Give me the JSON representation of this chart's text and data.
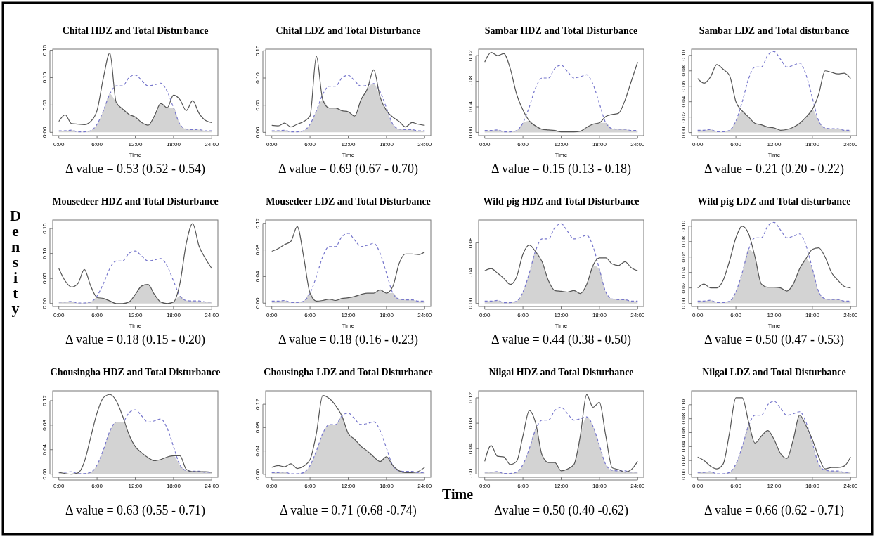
{
  "chart_data": [
    {
      "type": "line",
      "title": "Chital HDZ and Total Disturbance",
      "xlabel": "Time",
      "annotations": [
        "Δ value = 0.53 (0.52 - 0.54)"
      ],
      "x": [
        0,
        1,
        2,
        3,
        4,
        5,
        6,
        7,
        8,
        9,
        10,
        11,
        12,
        13,
        14,
        15,
        16,
        17,
        18,
        19,
        20,
        21,
        22,
        23,
        24
      ],
      "xlim": [
        -0.96,
        24.96
      ],
      "xticks": [
        {
          "value": 0,
          "label": "0:00"
        },
        {
          "value": 6,
          "label": "6:00"
        },
        {
          "value": 12,
          "label": "12:00"
        },
        {
          "value": 18,
          "label": "18:00"
        },
        {
          "value": 24,
          "label": "24:00"
        }
      ],
      "ylim": [
        -0.006,
        0.152
      ],
      "yticks": [
        {
          "value": 0,
          "label": "0.00"
        },
        {
          "value": 0.05,
          "label": "0.05"
        },
        {
          "value": 0.1,
          "label": "0.10"
        },
        {
          "value": 0.15,
          "label": "0.15"
        }
      ],
      "grid": false,
      "legend": false,
      "series": [
        {
          "type": "area",
          "color": "#d3d3d3",
          "values": [
            0.003,
            0.003,
            0.004,
            0.001,
            0.001,
            0.003,
            0.015,
            0.04,
            0.07,
            0.055,
            0.043,
            0.033,
            0.028,
            0.018,
            0.013,
            0.03,
            0.053,
            0.045,
            0.045,
            0.015,
            0.006,
            0.005,
            0.005,
            0.003,
            0.003
          ]
        },
        {
          "type": "line",
          "line_style": "dashed",
          "color": "#7777cc",
          "values": [
            0.003,
            0.003,
            0.004,
            0.001,
            0.001,
            0.003,
            0.015,
            0.04,
            0.07,
            0.085,
            0.085,
            0.1,
            0.105,
            0.095,
            0.085,
            0.087,
            0.09,
            0.075,
            0.045,
            0.015,
            0.006,
            0.005,
            0.005,
            0.003,
            0.003
          ]
        },
        {
          "type": "line",
          "line_style": "solid",
          "color": "#555555",
          "values": [
            0.02,
            0.032,
            0.016,
            0.015,
            0.014,
            0.02,
            0.04,
            0.1,
            0.145,
            0.055,
            0.043,
            0.033,
            0.028,
            0.018,
            0.013,
            0.03,
            0.053,
            0.045,
            0.068,
            0.06,
            0.04,
            0.058,
            0.035,
            0.022,
            0.018
          ]
        }
      ]
    },
    {
      "type": "line",
      "title": "Chital LDZ and Total Disturbance",
      "xlabel": "Time",
      "annotations": [
        "Δ value = 0.69 (0.67 - 0.70)"
      ],
      "x": [
        0,
        1,
        2,
        3,
        4,
        5,
        6,
        7,
        8,
        9,
        10,
        11,
        12,
        13,
        14,
        15,
        16,
        17,
        18,
        19,
        20,
        21,
        22,
        23,
        24
      ],
      "xlim": [
        -0.96,
        24.96
      ],
      "xticks": [
        {
          "value": 0,
          "label": "0:00"
        },
        {
          "value": 6,
          "label": "6:00"
        },
        {
          "value": 12,
          "label": "12:00"
        },
        {
          "value": 18,
          "label": "18:00"
        },
        {
          "value": 24,
          "label": "24:00"
        }
      ],
      "ylim": [
        -0.006,
        0.153
      ],
      "yticks": [
        {
          "value": 0,
          "label": "0.00"
        },
        {
          "value": 0.05,
          "label": "0.05"
        },
        {
          "value": 0.1,
          "label": "0.10"
        },
        {
          "value": 0.15,
          "label": "0.15"
        }
      ],
      "grid": false,
      "legend": false,
      "series": [
        {
          "type": "area",
          "color": "#d3d3d3",
          "values": [
            0.003,
            0.003,
            0.004,
            0.001,
            0.001,
            0.003,
            0.015,
            0.04,
            0.06,
            0.045,
            0.045,
            0.04,
            0.038,
            0.03,
            0.06,
            0.08,
            0.09,
            0.065,
            0.04,
            0.015,
            0.006,
            0.005,
            0.005,
            0.003,
            0.003
          ]
        },
        {
          "type": "line",
          "line_style": "dashed",
          "color": "#7777cc",
          "values": [
            0.003,
            0.003,
            0.004,
            0.001,
            0.001,
            0.003,
            0.015,
            0.04,
            0.07,
            0.085,
            0.085,
            0.1,
            0.105,
            0.095,
            0.085,
            0.087,
            0.09,
            0.075,
            0.045,
            0.015,
            0.006,
            0.005,
            0.005,
            0.003,
            0.003
          ]
        },
        {
          "type": "line",
          "line_style": "solid",
          "color": "#555555",
          "values": [
            0.013,
            0.012,
            0.017,
            0.01,
            0.015,
            0.02,
            0.03,
            0.14,
            0.06,
            0.045,
            0.045,
            0.04,
            0.038,
            0.03,
            0.06,
            0.08,
            0.115,
            0.065,
            0.04,
            0.028,
            0.02,
            0.01,
            0.018,
            0.015,
            0.013
          ]
        }
      ]
    },
    {
      "type": "line",
      "title": "Sambar HDZ and Total Disturbance",
      "xlabel": "Time",
      "annotations": [
        "Δ value =  0.15 (0.13 - 0.18)"
      ],
      "x": [
        0,
        1,
        2,
        3,
        4,
        5,
        6,
        7,
        8,
        9,
        10,
        11,
        12,
        13,
        14,
        15,
        16,
        17,
        18,
        19,
        20,
        21,
        22,
        23,
        24
      ],
      "xlim": [
        -0.96,
        24.96
      ],
      "xticks": [
        {
          "value": 0,
          "label": "0:00"
        },
        {
          "value": 6,
          "label": "6:00"
        },
        {
          "value": 12,
          "label": "12:00"
        },
        {
          "value": 18,
          "label": "18:00"
        },
        {
          "value": 24,
          "label": "24:00"
        }
      ],
      "ylim": [
        -0.005,
        0.13
      ],
      "yticks": [
        {
          "value": 0,
          "label": "0.00"
        },
        {
          "value": 0.04,
          "label": "0.04"
        },
        {
          "value": 0.08,
          "label": "0.08"
        },
        {
          "value": 0.12,
          "label": "0.12"
        }
      ],
      "grid": false,
      "legend": false,
      "series": [
        {
          "type": "area",
          "color": "#d3d3d3",
          "values": [
            0.003,
            0.003,
            0.004,
            0.001,
            0.001,
            0.003,
            0.015,
            0.018,
            0.01,
            0.005,
            0.004,
            0.003,
            0.001,
            0.001,
            0.001,
            0.002,
            0.008,
            0.013,
            0.015,
            0.015,
            0.006,
            0.005,
            0.005,
            0.003,
            0.003
          ]
        },
        {
          "type": "line",
          "line_style": "dashed",
          "color": "#7777cc",
          "values": [
            0.003,
            0.003,
            0.004,
            0.001,
            0.001,
            0.003,
            0.015,
            0.04,
            0.07,
            0.085,
            0.085,
            0.1,
            0.105,
            0.095,
            0.085,
            0.087,
            0.09,
            0.075,
            0.045,
            0.015,
            0.006,
            0.005,
            0.005,
            0.003,
            0.003
          ]
        },
        {
          "type": "line",
          "line_style": "solid",
          "color": "#555555",
          "values": [
            0.11,
            0.125,
            0.12,
            0.123,
            0.1,
            0.06,
            0.035,
            0.018,
            0.01,
            0.005,
            0.004,
            0.003,
            0.001,
            0.001,
            0.001,
            0.002,
            0.008,
            0.013,
            0.015,
            0.025,
            0.028,
            0.03,
            0.05,
            0.08,
            0.11
          ]
        }
      ]
    },
    {
      "type": "line",
      "title": "Sambar LDZ and Total disturbance",
      "xlabel": "Time",
      "annotations": [
        "Δ value = 0.21 (0.20 - 0.22)"
      ],
      "x": [
        0,
        1,
        2,
        3,
        4,
        5,
        6,
        7,
        8,
        9,
        10,
        11,
        12,
        13,
        14,
        15,
        16,
        17,
        18,
        19,
        20,
        21,
        22,
        23,
        24
      ],
      "xlim": [
        -0.96,
        24.96
      ],
      "xticks": [
        {
          "value": 0,
          "label": "0:00"
        },
        {
          "value": 6,
          "label": "6:00"
        },
        {
          "value": 12,
          "label": "12:00"
        },
        {
          "value": 18,
          "label": "18:00"
        },
        {
          "value": 24,
          "label": "24:00"
        }
      ],
      "ylim": [
        -0.004,
        0.108
      ],
      "yticks": [
        {
          "value": 0,
          "label": "0.00"
        },
        {
          "value": 0.02,
          "label": "0.02"
        },
        {
          "value": 0.04,
          "label": "0.04"
        },
        {
          "value": 0.06,
          "label": "0.06"
        },
        {
          "value": 0.08,
          "label": "0.08"
        },
        {
          "value": 0.1,
          "label": "0.10"
        }
      ],
      "grid": false,
      "legend": false,
      "series": [
        {
          "type": "area",
          "color": "#d3d3d3",
          "values": [
            0.003,
            0.003,
            0.004,
            0.001,
            0.001,
            0.003,
            0.015,
            0.028,
            0.02,
            0.012,
            0.01,
            0.007,
            0.006,
            0.003,
            0.004,
            0.007,
            0.012,
            0.02,
            0.03,
            0.015,
            0.006,
            0.005,
            0.005,
            0.003,
            0.003
          ]
        },
        {
          "type": "line",
          "line_style": "dashed",
          "color": "#7777cc",
          "values": [
            0.003,
            0.003,
            0.004,
            0.001,
            0.001,
            0.003,
            0.015,
            0.04,
            0.07,
            0.085,
            0.085,
            0.1,
            0.105,
            0.095,
            0.085,
            0.087,
            0.09,
            0.075,
            0.045,
            0.015,
            0.006,
            0.005,
            0.005,
            0.003,
            0.003
          ]
        },
        {
          "type": "line",
          "line_style": "solid",
          "color": "#555555",
          "values": [
            0.07,
            0.064,
            0.072,
            0.088,
            0.082,
            0.074,
            0.04,
            0.028,
            0.02,
            0.012,
            0.01,
            0.007,
            0.006,
            0.003,
            0.004,
            0.007,
            0.012,
            0.02,
            0.03,
            0.05,
            0.08,
            0.078,
            0.076,
            0.077,
            0.07
          ]
        }
      ]
    },
    {
      "type": "line",
      "title": "Mousedeer HDZ and Total Disturbance",
      "xlabel": "Time",
      "ylabel": "Density",
      "annotations": [
        "Δ value = 0.18 (0.15 - 0.20)"
      ],
      "x": [
        0,
        1,
        2,
        3,
        4,
        5,
        6,
        7,
        8,
        9,
        10,
        11,
        12,
        13,
        14,
        15,
        16,
        17,
        18,
        19,
        20,
        21,
        22,
        23,
        24
      ],
      "xlim": [
        -0.96,
        24.96
      ],
      "xticks": [
        {
          "value": 0,
          "label": "0:00"
        },
        {
          "value": 6,
          "label": "6:00"
        },
        {
          "value": 12,
          "label": "12:00"
        },
        {
          "value": 18,
          "label": "18:00"
        },
        {
          "value": 24,
          "label": "24:00"
        }
      ],
      "ylim": [
        -0.006,
        0.167
      ],
      "yticks": [
        {
          "value": 0,
          "label": "0.00"
        },
        {
          "value": 0.05,
          "label": "0.05"
        },
        {
          "value": 0.1,
          "label": "0.10"
        },
        {
          "value": 0.15,
          "label": "0.15"
        }
      ],
      "grid": false,
      "legend": false,
      "series": [
        {
          "type": "area",
          "color": "#d3d3d3",
          "values": [
            0.003,
            0.003,
            0.004,
            0.001,
            0.001,
            0.003,
            0.012,
            0.01,
            0.005,
            0.0,
            0.0,
            0.003,
            0.018,
            0.035,
            0.038,
            0.018,
            0.003,
            0.0,
            0.003,
            0.015,
            0.006,
            0.005,
            0.005,
            0.003,
            0.003
          ]
        },
        {
          "type": "line",
          "line_style": "dashed",
          "color": "#7777cc",
          "values": [
            0.003,
            0.003,
            0.004,
            0.001,
            0.001,
            0.003,
            0.015,
            0.04,
            0.07,
            0.085,
            0.085,
            0.1,
            0.105,
            0.095,
            0.085,
            0.087,
            0.09,
            0.075,
            0.045,
            0.015,
            0.006,
            0.005,
            0.005,
            0.003,
            0.003
          ]
        },
        {
          "type": "line",
          "line_style": "solid",
          "color": "#555555",
          "values": [
            0.07,
            0.045,
            0.033,
            0.04,
            0.068,
            0.035,
            0.012,
            0.01,
            0.005,
            0.0,
            0.0,
            0.003,
            0.018,
            0.035,
            0.038,
            0.018,
            0.003,
            0.0,
            0.003,
            0.04,
            0.12,
            0.16,
            0.115,
            0.09,
            0.07
          ]
        }
      ]
    },
    {
      "type": "line",
      "title": "Mousedeer LDZ and Total Disturbance",
      "xlabel": "Time",
      "annotations": [
        "Δ value = 0.18 (0.16 - 0.23)"
      ],
      "x": [
        0,
        1,
        2,
        3,
        4,
        5,
        6,
        7,
        8,
        9,
        10,
        11,
        12,
        13,
        14,
        15,
        16,
        17,
        18,
        19,
        20,
        21,
        22,
        23,
        24
      ],
      "xlim": [
        -0.96,
        24.96
      ],
      "xticks": [
        {
          "value": 0,
          "label": "0:00"
        },
        {
          "value": 6,
          "label": "6:00"
        },
        {
          "value": 12,
          "label": "12:00"
        },
        {
          "value": 18,
          "label": "18:00"
        },
        {
          "value": 24,
          "label": "24:00"
        }
      ],
      "ylim": [
        -0.005,
        0.125
      ],
      "yticks": [
        {
          "value": 0,
          "label": "0.00"
        },
        {
          "value": 0.04,
          "label": "0.04"
        },
        {
          "value": 0.08,
          "label": "0.08"
        },
        {
          "value": 0.12,
          "label": "0.12"
        }
      ],
      "grid": false,
      "legend": false,
      "series": [
        {
          "type": "area",
          "color": "#d3d3d3",
          "values": [
            0.003,
            0.003,
            0.004,
            0.001,
            0.001,
            0.003,
            0.015,
            0.003,
            0.004,
            0.006,
            0.004,
            0.007,
            0.008,
            0.01,
            0.013,
            0.015,
            0.015,
            0.02,
            0.015,
            0.015,
            0.006,
            0.005,
            0.005,
            0.003,
            0.003
          ]
        },
        {
          "type": "line",
          "line_style": "dashed",
          "color": "#7777cc",
          "values": [
            0.003,
            0.003,
            0.004,
            0.001,
            0.001,
            0.003,
            0.015,
            0.04,
            0.07,
            0.085,
            0.085,
            0.1,
            0.105,
            0.095,
            0.085,
            0.087,
            0.09,
            0.075,
            0.045,
            0.015,
            0.006,
            0.005,
            0.005,
            0.003,
            0.003
          ]
        },
        {
          "type": "line",
          "line_style": "solid",
          "color": "#555555",
          "values": [
            0.078,
            0.082,
            0.088,
            0.093,
            0.115,
            0.07,
            0.015,
            0.003,
            0.004,
            0.006,
            0.004,
            0.007,
            0.008,
            0.01,
            0.013,
            0.015,
            0.015,
            0.02,
            0.015,
            0.025,
            0.06,
            0.074,
            0.074,
            0.073,
            0.077
          ]
        }
      ]
    },
    {
      "type": "line",
      "title": "Wild pig HDZ and Total Disturbance",
      "xlabel": "Time",
      "annotations": [
        "Δ value = 0.44 (0.38 - 0.50)"
      ],
      "x": [
        0,
        1,
        2,
        3,
        4,
        5,
        6,
        7,
        8,
        9,
        10,
        11,
        12,
        13,
        14,
        15,
        16,
        17,
        18,
        19,
        20,
        21,
        22,
        23,
        24
      ],
      "xlim": [
        -0.96,
        24.96
      ],
      "xticks": [
        {
          "value": 0,
          "label": "0:00"
        },
        {
          "value": 6,
          "label": "6:00"
        },
        {
          "value": 12,
          "label": "12:00"
        },
        {
          "value": 18,
          "label": "18:00"
        },
        {
          "value": 24,
          "label": "24:00"
        }
      ],
      "ylim": [
        -0.004,
        0.11
      ],
      "yticks": [
        {
          "value": 0,
          "label": "0.00"
        },
        {
          "value": 0.04,
          "label": "0.04"
        },
        {
          "value": 0.08,
          "label": "0.08"
        }
      ],
      "grid": false,
      "legend": false,
      "series": [
        {
          "type": "area",
          "color": "#d3d3d3",
          "values": [
            0.003,
            0.003,
            0.004,
            0.001,
            0.001,
            0.003,
            0.015,
            0.04,
            0.068,
            0.055,
            0.03,
            0.017,
            0.016,
            0.015,
            0.017,
            0.013,
            0.025,
            0.05,
            0.045,
            0.015,
            0.006,
            0.005,
            0.005,
            0.003,
            0.003
          ]
        },
        {
          "type": "line",
          "line_style": "dashed",
          "color": "#7777cc",
          "values": [
            0.003,
            0.003,
            0.004,
            0.001,
            0.001,
            0.003,
            0.015,
            0.04,
            0.07,
            0.085,
            0.085,
            0.1,
            0.105,
            0.095,
            0.085,
            0.087,
            0.09,
            0.075,
            0.045,
            0.015,
            0.006,
            0.005,
            0.005,
            0.003,
            0.003
          ]
        },
        {
          "type": "line",
          "line_style": "solid",
          "color": "#555555",
          "values": [
            0.043,
            0.046,
            0.04,
            0.033,
            0.025,
            0.035,
            0.065,
            0.077,
            0.068,
            0.055,
            0.03,
            0.017,
            0.016,
            0.015,
            0.017,
            0.013,
            0.025,
            0.05,
            0.06,
            0.06,
            0.052,
            0.05,
            0.055,
            0.047,
            0.043
          ]
        }
      ]
    },
    {
      "type": "line",
      "title": "Wild pig LDZ and Total disturbance",
      "xlabel": "Time",
      "annotations": [
        "Δ value = 0.50 (0.47 - 0.53)"
      ],
      "x": [
        0,
        1,
        2,
        3,
        4,
        5,
        6,
        7,
        8,
        9,
        10,
        11,
        12,
        13,
        14,
        15,
        16,
        17,
        18,
        19,
        20,
        21,
        22,
        23,
        24
      ],
      "xlim": [
        -0.96,
        24.96
      ],
      "xticks": [
        {
          "value": 0,
          "label": "0:00"
        },
        {
          "value": 6,
          "label": "6:00"
        },
        {
          "value": 12,
          "label": "12:00"
        },
        {
          "value": 18,
          "label": "18:00"
        },
        {
          "value": 24,
          "label": "24:00"
        }
      ],
      "ylim": [
        -0.004,
        0.108
      ],
      "yticks": [
        {
          "value": 0,
          "label": "0.00"
        },
        {
          "value": 0.02,
          "label": "0.02"
        },
        {
          "value": 0.04,
          "label": "0.04"
        },
        {
          "value": 0.06,
          "label": "0.06"
        },
        {
          "value": 0.08,
          "label": "0.08"
        },
        {
          "value": 0.1,
          "label": "0.10"
        }
      ],
      "grid": false,
      "legend": false,
      "series": [
        {
          "type": "area",
          "color": "#d3d3d3",
          "values": [
            0.003,
            0.003,
            0.004,
            0.001,
            0.001,
            0.003,
            0.015,
            0.04,
            0.07,
            0.06,
            0.025,
            0.021,
            0.021,
            0.02,
            0.016,
            0.025,
            0.045,
            0.058,
            0.045,
            0.015,
            0.006,
            0.005,
            0.005,
            0.003,
            0.003
          ]
        },
        {
          "type": "line",
          "line_style": "dashed",
          "color": "#7777cc",
          "values": [
            0.003,
            0.003,
            0.004,
            0.001,
            0.001,
            0.003,
            0.015,
            0.04,
            0.07,
            0.085,
            0.085,
            0.1,
            0.105,
            0.095,
            0.085,
            0.087,
            0.09,
            0.075,
            0.045,
            0.015,
            0.006,
            0.005,
            0.005,
            0.003,
            0.003
          ]
        },
        {
          "type": "line",
          "line_style": "solid",
          "color": "#555555",
          "values": [
            0.02,
            0.025,
            0.02,
            0.02,
            0.03,
            0.055,
            0.085,
            0.1,
            0.09,
            0.06,
            0.025,
            0.021,
            0.021,
            0.02,
            0.016,
            0.025,
            0.045,
            0.058,
            0.07,
            0.072,
            0.06,
            0.04,
            0.03,
            0.022,
            0.02
          ]
        }
      ]
    },
    {
      "type": "line",
      "title": "Chousingha HDZ and Total Disturbance",
      "annotations": [
        "Δ value = 0.63 (0.55 - 0.71)"
      ],
      "x": [
        0,
        1,
        2,
        3,
        4,
        5,
        6,
        7,
        8,
        9,
        10,
        11,
        12,
        13,
        14,
        15,
        16,
        17,
        18,
        19,
        20,
        21,
        22,
        23,
        24
      ],
      "xlim": [
        -0.96,
        24.96
      ],
      "xticks": [
        {
          "value": 0,
          "label": "0:00"
        },
        {
          "value": 6,
          "label": "6:00"
        },
        {
          "value": 12,
          "label": "12:00"
        },
        {
          "value": 18,
          "label": "18:00"
        },
        {
          "value": 24,
          "label": "24:00"
        }
      ],
      "ylim": [
        -0.005,
        0.136
      ],
      "yticks": [
        {
          "value": 0,
          "label": "0.00"
        },
        {
          "value": 0.04,
          "label": "0.04"
        },
        {
          "value": 0.08,
          "label": "0.08"
        },
        {
          "value": 0.12,
          "label": "0.12"
        }
      ],
      "grid": false,
      "legend": false,
      "series": [
        {
          "type": "area",
          "color": "#d3d3d3",
          "values": [
            0.003,
            0.001,
            0.0,
            0.001,
            0.001,
            0.003,
            0.015,
            0.04,
            0.07,
            0.085,
            0.085,
            0.065,
            0.045,
            0.035,
            0.027,
            0.022,
            0.024,
            0.028,
            0.03,
            0.015,
            0.006,
            0.004,
            0.004,
            0.003,
            0.003
          ]
        },
        {
          "type": "line",
          "line_style": "dashed",
          "color": "#7777cc",
          "values": [
            0.003,
            0.003,
            0.004,
            0.001,
            0.001,
            0.003,
            0.015,
            0.04,
            0.07,
            0.085,
            0.085,
            0.1,
            0.105,
            0.095,
            0.085,
            0.087,
            0.09,
            0.075,
            0.045,
            0.015,
            0.006,
            0.005,
            0.005,
            0.003,
            0.003
          ]
        },
        {
          "type": "line",
          "line_style": "solid",
          "color": "#555555",
          "values": [
            0.003,
            0.001,
            0.0,
            0.002,
            0.02,
            0.06,
            0.1,
            0.125,
            0.13,
            0.12,
            0.095,
            0.065,
            0.045,
            0.035,
            0.027,
            0.022,
            0.024,
            0.028,
            0.03,
            0.03,
            0.008,
            0.004,
            0.004,
            0.004,
            0.003
          ]
        }
      ]
    },
    {
      "type": "line",
      "title": "Chousingha LDZ and Total Disturbance",
      "annotations": [
        "Δ value = 0.71 (0.68 -0.74)",
        "Time"
      ],
      "x": [
        0,
        1,
        2,
        3,
        4,
        5,
        6,
        7,
        8,
        9,
        10,
        11,
        12,
        13,
        14,
        15,
        16,
        17,
        18,
        19,
        20,
        21,
        22,
        23,
        24
      ],
      "xlim": [
        -0.96,
        24.96
      ],
      "xticks": [
        {
          "value": 0,
          "label": "0:00"
        },
        {
          "value": 6,
          "label": "6:00"
        },
        {
          "value": 12,
          "label": "12:00"
        },
        {
          "value": 18,
          "label": "18:00"
        },
        {
          "value": 24,
          "label": "24:00"
        }
      ],
      "ylim": [
        -0.005,
        0.143
      ],
      "yticks": [
        {
          "value": 0,
          "label": "0.00"
        },
        {
          "value": 0.04,
          "label": "0.04"
        },
        {
          "value": 0.08,
          "label": "0.08"
        },
        {
          "value": 0.12,
          "label": "0.12"
        }
      ],
      "grid": false,
      "legend": false,
      "series": [
        {
          "type": "area",
          "color": "#d3d3d3",
          "values": [
            0.003,
            0.003,
            0.004,
            0.001,
            0.001,
            0.003,
            0.015,
            0.04,
            0.07,
            0.085,
            0.085,
            0.1,
            0.07,
            0.06,
            0.048,
            0.04,
            0.03,
            0.022,
            0.03,
            0.015,
            0.006,
            0.003,
            0.003,
            0.003,
            0.003
          ]
        },
        {
          "type": "line",
          "line_style": "dashed",
          "color": "#7777cc",
          "values": [
            0.003,
            0.003,
            0.004,
            0.001,
            0.001,
            0.003,
            0.015,
            0.04,
            0.07,
            0.085,
            0.085,
            0.1,
            0.105,
            0.095,
            0.085,
            0.087,
            0.09,
            0.075,
            0.045,
            0.015,
            0.006,
            0.005,
            0.005,
            0.003,
            0.003
          ]
        },
        {
          "type": "line",
          "line_style": "solid",
          "color": "#555555",
          "values": [
            0.012,
            0.015,
            0.013,
            0.018,
            0.01,
            0.014,
            0.025,
            0.07,
            0.135,
            0.13,
            0.118,
            0.1,
            0.07,
            0.06,
            0.048,
            0.04,
            0.03,
            0.022,
            0.03,
            0.015,
            0.006,
            0.003,
            0.003,
            0.005,
            0.012
          ]
        }
      ]
    },
    {
      "type": "line",
      "title": "Nilgai HDZ and Total Disturbance",
      "annotations": [
        "Δvalue = 0.50 (0.40 -0.62)"
      ],
      "x": [
        0,
        1,
        2,
        3,
        4,
        5,
        6,
        7,
        8,
        9,
        10,
        11,
        12,
        13,
        14,
        15,
        16,
        17,
        18,
        19,
        20,
        21,
        22,
        23,
        24
      ],
      "xlim": [
        -0.96,
        24.96
      ],
      "xticks": [
        {
          "value": 0,
          "label": "0:00"
        },
        {
          "value": 6,
          "label": "6:00"
        },
        {
          "value": 12,
          "label": "12:00"
        },
        {
          "value": 18,
          "label": "18:00"
        },
        {
          "value": 24,
          "label": "24:00"
        }
      ],
      "ylim": [
        -0.005,
        0.131
      ],
      "yticks": [
        {
          "value": 0,
          "label": "0.00"
        },
        {
          "value": 0.04,
          "label": "0.04"
        },
        {
          "value": 0.08,
          "label": "0.08"
        },
        {
          "value": 0.12,
          "label": "0.12"
        }
      ],
      "grid": false,
      "legend": false,
      "series": [
        {
          "type": "area",
          "color": "#d3d3d3",
          "values": [
            0.003,
            0.003,
            0.004,
            0.001,
            0.001,
            0.003,
            0.015,
            0.04,
            0.07,
            0.03,
            0.018,
            0.018,
            0.005,
            0.008,
            0.015,
            0.06,
            0.09,
            0.075,
            0.045,
            0.015,
            0.006,
            0.005,
            0.003,
            0.003,
            0.003
          ]
        },
        {
          "type": "line",
          "line_style": "dashed",
          "color": "#7777cc",
          "values": [
            0.003,
            0.003,
            0.004,
            0.001,
            0.001,
            0.003,
            0.015,
            0.04,
            0.07,
            0.085,
            0.085,
            0.1,
            0.105,
            0.095,
            0.085,
            0.087,
            0.09,
            0.075,
            0.045,
            0.015,
            0.006,
            0.005,
            0.005,
            0.003,
            0.003
          ]
        },
        {
          "type": "line",
          "line_style": "solid",
          "color": "#555555",
          "values": [
            0.02,
            0.045,
            0.028,
            0.027,
            0.015,
            0.02,
            0.06,
            0.1,
            0.08,
            0.03,
            0.018,
            0.018,
            0.005,
            0.008,
            0.015,
            0.06,
            0.125,
            0.105,
            0.113,
            0.06,
            0.01,
            0.007,
            0.003,
            0.007,
            0.02
          ]
        }
      ]
    },
    {
      "type": "line",
      "title": "Nilgai LDZ and Total Disturbance",
      "annotations": [
        "Δ value = 0.66 (0.62 - 0.71)"
      ],
      "x": [
        0,
        1,
        2,
        3,
        4,
        5,
        6,
        7,
        8,
        9,
        10,
        11,
        12,
        13,
        14,
        15,
        16,
        17,
        18,
        19,
        20,
        21,
        22,
        23,
        24
      ],
      "xlim": [
        -0.96,
        24.96
      ],
      "xticks": [
        {
          "value": 0,
          "label": "0:00"
        },
        {
          "value": 6,
          "label": "6:00"
        },
        {
          "value": 12,
          "label": "12:00"
        },
        {
          "value": 18,
          "label": "18:00"
        },
        {
          "value": 24,
          "label": "24:00"
        }
      ],
      "ylim": [
        -0.004,
        0.12
      ],
      "yticks": [
        {
          "value": 0,
          "label": "0.00"
        },
        {
          "value": 0.02,
          "label": "0.02"
        },
        {
          "value": 0.04,
          "label": "0.04"
        },
        {
          "value": 0.06,
          "label": "0.06"
        },
        {
          "value": 0.08,
          "label": "0.08"
        },
        {
          "value": 0.1,
          "label": "0.10"
        }
      ],
      "grid": false,
      "legend": false,
      "series": [
        {
          "type": "area",
          "color": "#d3d3d3",
          "values": [
            0.003,
            0.003,
            0.004,
            0.001,
            0.001,
            0.003,
            0.015,
            0.04,
            0.07,
            0.045,
            0.055,
            0.063,
            0.05,
            0.03,
            0.023,
            0.05,
            0.085,
            0.07,
            0.045,
            0.015,
            0.006,
            0.005,
            0.005,
            0.003,
            0.003
          ]
        },
        {
          "type": "line",
          "line_style": "dashed",
          "color": "#7777cc",
          "values": [
            0.003,
            0.003,
            0.004,
            0.001,
            0.001,
            0.003,
            0.015,
            0.04,
            0.07,
            0.085,
            0.085,
            0.1,
            0.105,
            0.095,
            0.085,
            0.087,
            0.09,
            0.075,
            0.045,
            0.015,
            0.006,
            0.005,
            0.005,
            0.003,
            0.003
          ]
        },
        {
          "type": "line",
          "line_style": "solid",
          "color": "#555555",
          "values": [
            0.025,
            0.02,
            0.012,
            0.008,
            0.015,
            0.06,
            0.11,
            0.11,
            0.075,
            0.045,
            0.055,
            0.063,
            0.05,
            0.03,
            0.023,
            0.05,
            0.085,
            0.07,
            0.05,
            0.025,
            0.008,
            0.01,
            0.01,
            0.012,
            0.025
          ]
        }
      ]
    }
  ]
}
